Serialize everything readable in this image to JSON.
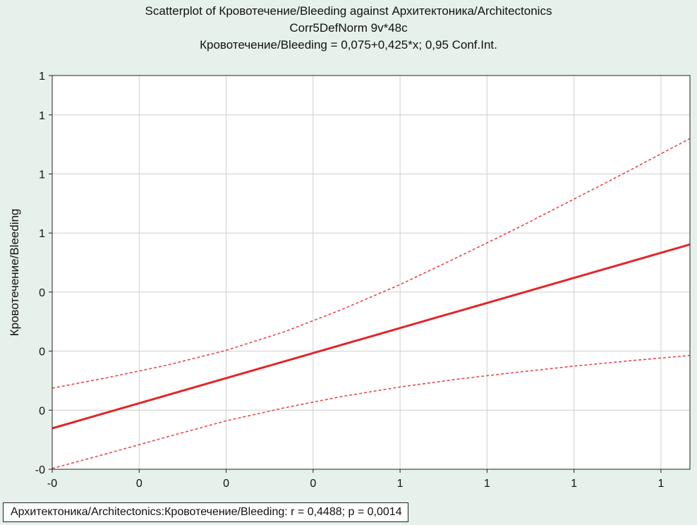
{
  "chart_data": {
    "type": "line",
    "title": "Scatterplot of Кровотечение/Bleeding against Архитектоника/Architectonics",
    "subtitle": "Corr5DefNorm 9v*48c",
    "equation": "Кровотечение/Bleeding = 0,075+0,425*x; 0,95 Conf.Int.",
    "xlabel": "",
    "ylabel": "Кровотечение/Bleeding",
    "xlim": [
      -0.05,
      1.05
    ],
    "ylim": [
      -0.05,
      0.95
    ],
    "x_ticks": [
      -0.05,
      0.1,
      0.25,
      0.4,
      0.55,
      0.7,
      0.85,
      1.0
    ],
    "x_tick_labels": [
      "-0",
      "0",
      "0",
      "0",
      "1",
      "1",
      "1",
      "1"
    ],
    "y_ticks": [
      -0.05,
      0.1,
      0.25,
      0.4,
      0.55,
      0.7,
      0.85,
      0.95
    ],
    "y_tick_labels": [
      "-0",
      "0",
      "0",
      "0",
      "1",
      "1",
      "1",
      "1"
    ],
    "grid": true,
    "series": [
      {
        "style": "solid",
        "color": "#e0262a",
        "x": [
          -0.05,
          1.05
        ],
        "y": [
          0.054,
          0.521
        ]
      },
      {
        "style": "dashed",
        "color": "#e8484c",
        "x": [
          -0.05,
          0.05,
          0.15,
          0.25,
          0.35,
          0.45,
          0.55,
          0.65,
          0.75,
          0.85,
          0.95,
          1.05
        ],
        "y": [
          0.156,
          0.184,
          0.215,
          0.252,
          0.299,
          0.356,
          0.419,
          0.489,
          0.561,
          0.636,
          0.712,
          0.79
        ]
      },
      {
        "style": "dashed",
        "color": "#e8484c",
        "x": [
          -0.05,
          0.05,
          0.15,
          0.25,
          0.35,
          0.45,
          0.55,
          0.65,
          0.75,
          0.85,
          0.95,
          1.05
        ],
        "y": [
          -0.048,
          -0.008,
          0.033,
          0.073,
          0.106,
          0.135,
          0.159,
          0.179,
          0.196,
          0.212,
          0.226,
          0.239
        ]
      }
    ],
    "stats_text": "Архитектоника/Architectonics:Кровотечение/Bleeding:   r = 0,4488; p = 0,0014"
  }
}
